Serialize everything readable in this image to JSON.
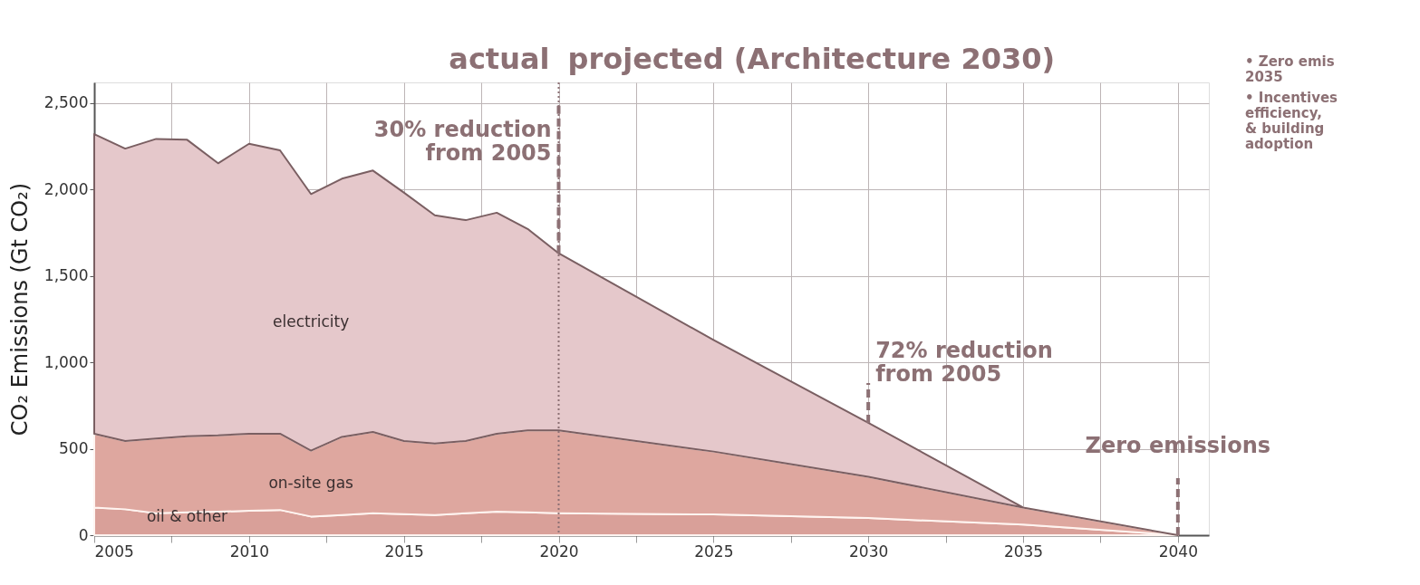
{
  "chart_data": {
    "type": "area",
    "stacked": true,
    "ylabel": "CO₂ Emissions (Gt CO₂)",
    "x": [
      2005,
      2006,
      2007,
      2008,
      2009,
      2010,
      2011,
      2012,
      2013,
      2014,
      2015,
      2016,
      2017,
      2018,
      2019,
      2020,
      2025,
      2030,
      2035,
      2040
    ],
    "series": [
      {
        "name": "oil & other",
        "color": "#d9a099",
        "values": [
          160,
          150,
          127,
          132,
          136,
          141,
          146,
          108,
          117,
          127,
          122,
          117,
          127,
          136,
          132,
          127,
          120,
          99,
          61,
          0
        ]
      },
      {
        "name": "on-site gas",
        "color": "#dea79f",
        "values": [
          427,
          395,
          432,
          441,
          442,
          446,
          441,
          381,
          452,
          470,
          423,
          414,
          418,
          451,
          474,
          479,
          364,
          239,
          99,
          0
        ]
      },
      {
        "name": "electricity",
        "color": "#e5c8cb",
        "values": [
          1734,
          1692,
          1734,
          1715,
          1574,
          1678,
          1640,
          1485,
          1494,
          1513,
          1438,
          1320,
          1278,
          1279,
          1166,
          1025,
          646,
          312,
          0,
          0
        ]
      }
    ],
    "xlim": [
      2005,
      2041
    ],
    "xticks": [
      2005,
      {
        "value": 2007.5,
        "label": null
      },
      2010,
      {
        "value": 2012.5,
        "label": null
      },
      2015,
      {
        "value": 2017.5,
        "label": null
      },
      2020,
      {
        "value": 2022.5,
        "label": null
      },
      2025,
      {
        "value": 2027.5,
        "label": null
      },
      2030,
      {
        "value": 2032.5,
        "label": null
      },
      2035,
      {
        "value": 2037.5,
        "label": null
      },
      2040
    ],
    "ylim": [
      0,
      2620
    ],
    "yticks": [
      0,
      500,
      {
        "value": 1000,
        "label": "1,000"
      },
      {
        "value": 1500,
        "label": "1,500"
      },
      {
        "value": 2000,
        "label": "2,000"
      },
      {
        "value": 2500,
        "label": "2,500"
      }
    ],
    "grid": true,
    "legend": false,
    "ref_lines": [
      {
        "axis": "x",
        "value": 2020,
        "color": "#8c7074",
        "line_style": "dotted"
      }
    ],
    "annotations": [
      {
        "text": "30% reduction\nfrom 2005",
        "x": 2020,
        "y": 1631
      },
      {
        "text": "72% reduction\nfrom 2005",
        "x": 2030,
        "y": 650
      },
      {
        "text": "Zero emissions",
        "x": 2040,
        "y": 0
      },
      "actual",
      "projected (Architecture 2030)",
      "• Zero emis\n2035",
      "• Incentives\nefficiency,\n& building\nadoption"
    ]
  }
}
